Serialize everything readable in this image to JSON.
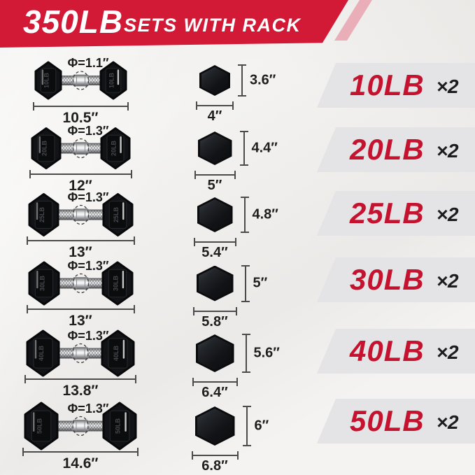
{
  "header": {
    "total": "350LB",
    "subtitle": "SETS WITH RACK"
  },
  "rows": [
    {
      "phi": "Φ=1.1″",
      "phi_in": 1.1,
      "length": "10.5″",
      "length_in": 10.5,
      "hex_height": "3.6″",
      "hex_h_in": 3.6,
      "hex_width": "4″",
      "hex_w_in": 4.0,
      "weight": "10LB",
      "count": "×2"
    },
    {
      "phi": "Φ=1.3″",
      "phi_in": 1.3,
      "length": "12″",
      "length_in": 12.0,
      "hex_height": "4.4″",
      "hex_h_in": 4.4,
      "hex_width": "5″",
      "hex_w_in": 5.0,
      "weight": "20LB",
      "count": "×2"
    },
    {
      "phi": "Φ=1.3″",
      "phi_in": 1.3,
      "length": "13″",
      "length_in": 13.0,
      "hex_height": "4.8″",
      "hex_h_in": 4.8,
      "hex_width": "5.4″",
      "hex_w_in": 5.4,
      "weight": "25LB",
      "count": "×2"
    },
    {
      "phi": "Φ=1.3″",
      "phi_in": 1.3,
      "length": "13″",
      "length_in": 13.0,
      "hex_height": "5″",
      "hex_h_in": 5.0,
      "hex_width": "5.8″",
      "hex_w_in": 5.8,
      "weight": "30LB",
      "count": "×2"
    },
    {
      "phi": "Φ=1.3″",
      "phi_in": 1.3,
      "length": "13.8″",
      "length_in": 13.8,
      "hex_height": "5.6″",
      "hex_h_in": 5.6,
      "hex_width": "6.4″",
      "hex_w_in": 6.4,
      "weight": "40LB",
      "count": "×2"
    },
    {
      "phi": "Φ=1.3″",
      "phi_in": 1.3,
      "length": "14.6″",
      "length_in": 14.6,
      "hex_height": "6″",
      "hex_h_in": 6.0,
      "hex_width": "6.8″",
      "hex_w_in": 6.8,
      "weight": "50LB",
      "count": "×2"
    }
  ],
  "colors": {
    "header_red": "#d21936",
    "stripe_pink": "#e9aeb8",
    "band_gray": "#e4e3e5",
    "weight_red": "#c5122f",
    "count_dark": "#1d1d1f",
    "dumbbell_black": "#121316",
    "dimension_gray": "#4b4b4b"
  }
}
